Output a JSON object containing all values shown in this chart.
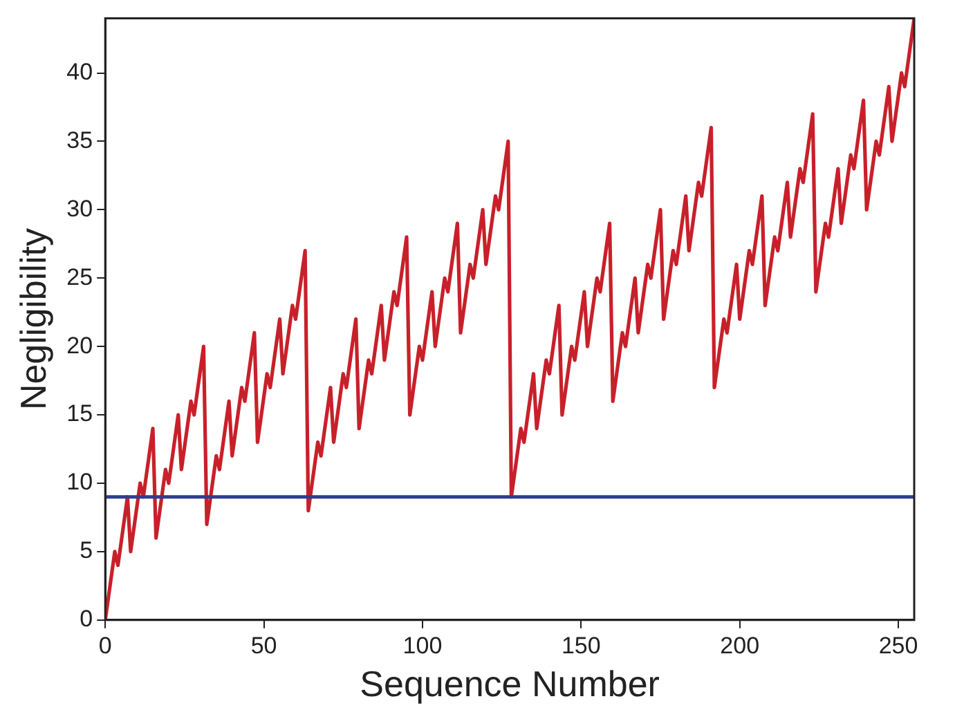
{
  "chart_data": {
    "type": "line",
    "xlabel": "Sequence Number",
    "ylabel": "Negligibility",
    "series": [
      {
        "color": "#c8202a",
        "x": [
          0,
          3,
          4,
          7,
          8,
          11,
          12,
          15,
          16,
          19,
          20,
          23,
          24,
          27,
          28,
          31,
          32,
          35,
          36,
          39,
          40,
          43,
          44,
          47,
          48,
          51,
          52,
          55,
          56,
          59,
          60,
          63,
          64,
          67,
          68,
          71,
          72,
          75,
          76,
          79,
          80,
          83,
          84,
          87,
          88,
          91,
          92,
          95,
          96,
          99,
          100,
          103,
          104,
          107,
          108,
          111,
          112,
          115,
          116,
          119,
          120,
          123,
          124,
          127,
          128,
          131,
          132,
          135,
          136,
          139,
          140,
          143,
          144,
          147,
          148,
          151,
          152,
          155,
          156,
          159,
          160,
          163,
          164,
          167,
          168,
          171,
          172,
          175,
          176,
          179,
          180,
          183,
          184,
          187,
          188,
          191,
          192,
          195,
          196,
          199,
          200,
          203,
          204,
          207,
          208,
          211,
          212,
          215,
          216,
          219,
          220,
          223,
          224,
          227,
          228,
          231,
          232,
          235,
          236,
          239,
          240,
          243,
          244,
          247,
          248,
          251,
          252,
          255
        ],
        "values": [
          0,
          5,
          4,
          9,
          5,
          10,
          9,
          14,
          6,
          11,
          10,
          15,
          11,
          16,
          15,
          20,
          7,
          12,
          11,
          16,
          12,
          17,
          16,
          21,
          13,
          18,
          17,
          22,
          18,
          23,
          22,
          27,
          8,
          13,
          12,
          17,
          13,
          18,
          17,
          22,
          14,
          19,
          18,
          23,
          19,
          24,
          23,
          28,
          15,
          20,
          19,
          24,
          20,
          25,
          24,
          29,
          21,
          26,
          25,
          30,
          26,
          31,
          30,
          35,
          9,
          14,
          13,
          18,
          14,
          19,
          18,
          23,
          15,
          20,
          19,
          24,
          20,
          25,
          24,
          29,
          16,
          21,
          20,
          25,
          21,
          26,
          25,
          30,
          22,
          27,
          26,
          31,
          27,
          32,
          31,
          36,
          17,
          22,
          21,
          26,
          22,
          27,
          26,
          31,
          23,
          28,
          27,
          32,
          28,
          33,
          32,
          37,
          24,
          29,
          28,
          33,
          29,
          34,
          33,
          38,
          30,
          35,
          34,
          39,
          35,
          40,
          39,
          44
        ]
      }
    ],
    "ref_lines": [
      {
        "axis": "y",
        "value": 9,
        "color": "#2e3c96"
      }
    ],
    "xlim": [
      0,
      255
    ],
    "xticks": [
      0,
      50,
      100,
      150,
      200,
      250
    ],
    "ylim": [
      0,
      44
    ],
    "yticks": [
      0,
      5,
      10,
      15,
      20,
      25,
      30,
      35,
      40
    ],
    "grid": false,
    "legend": false,
    "marker": "none",
    "line_style": "solid"
  }
}
